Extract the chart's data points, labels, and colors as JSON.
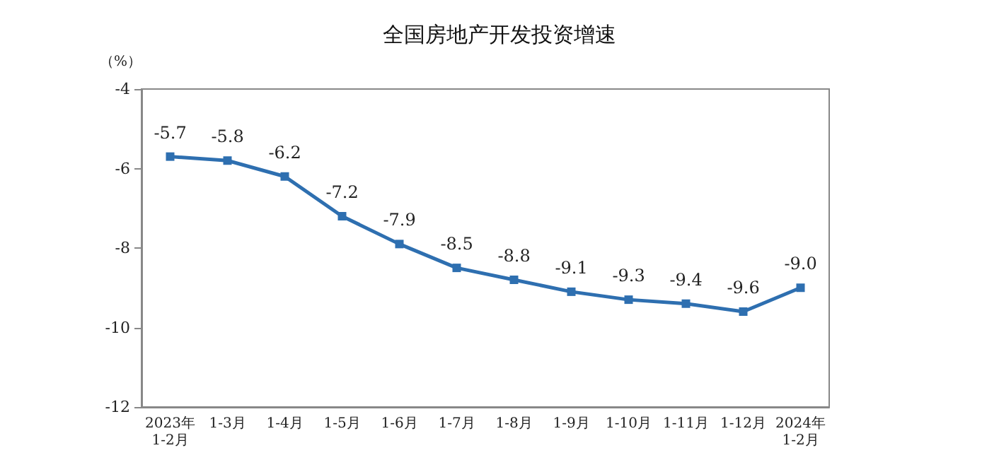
{
  "chart_data": {
    "type": "line",
    "title": "全国房地产开发投资增速",
    "ylabel": "（%）",
    "categories": [
      "2023年\n1-2月",
      "1-3月",
      "1-4月",
      "1-5月",
      "1-6月",
      "1-7月",
      "1-8月",
      "1-9月",
      "1-10月",
      "1-11月",
      "1-12月",
      "2024年\n1-2月"
    ],
    "series": [
      {
        "color": "#2e6fb0",
        "values": [
          -5.7,
          -5.8,
          -6.2,
          -7.2,
          -7.9,
          -8.5,
          -8.8,
          -9.1,
          -9.3,
          -9.4,
          -9.6,
          -9.0
        ],
        "value_labels": [
          "-5.7",
          "-5.8",
          "-6.2",
          "-7.2",
          "-7.9",
          "-8.5",
          "-8.8",
          "-9.1",
          "-9.3",
          "-9.4",
          "-9.6",
          "-9.0"
        ]
      }
    ],
    "ylim": [
      -12,
      -4
    ],
    "yticks": [
      -12,
      -10,
      -8,
      -6,
      -4
    ],
    "grid": false,
    "marker": "square",
    "line_style": "solid"
  }
}
